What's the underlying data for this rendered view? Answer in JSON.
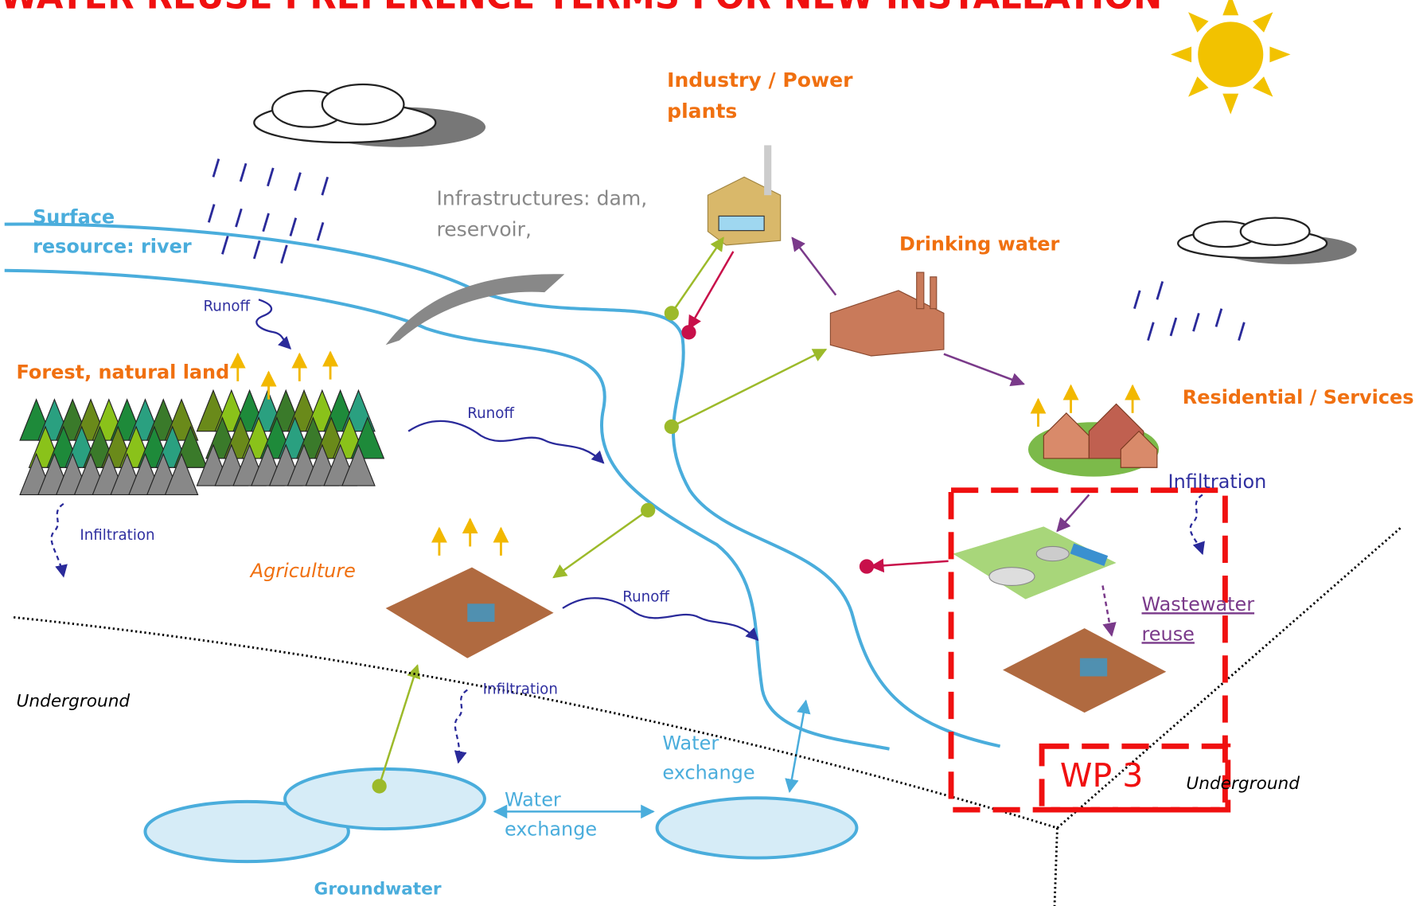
{
  "labels": [
    {
      "lines": [
        "WATER REUSE PREFERENCE TERMS FOR NEW INSTALLATION"
      ]
    },
    {
      "lines": [
        "Industry / Power",
        "plants"
      ]
    },
    {
      "lines": [
        "Infrastructures: dam,",
        "reservoir,"
      ]
    },
    {
      "lines": [
        "Surface",
        "resource: river"
      ]
    },
    {
      "lines": [
        "Drinking water"
      ]
    },
    {
      "lines": [
        "Runoff"
      ]
    },
    {
      "lines": [
        "Forest, natural land"
      ]
    },
    {
      "lines": [
        "Runoff"
      ]
    },
    {
      "lines": [
        "Residential / Services"
      ]
    },
    {
      "lines": [
        "Infiltration"
      ]
    },
    {
      "lines": [
        "Infiltration"
      ]
    },
    {
      "lines": [
        "Agriculture"
      ]
    },
    {
      "lines": [
        "Runoff"
      ]
    },
    {
      "lines": [
        "Wastewater",
        "reuse"
      ]
    },
    {
      "lines": [
        "Underground"
      ]
    },
    {
      "lines": [
        "Infiltration"
      ]
    },
    {
      "lines": [
        "Water",
        "exchange"
      ]
    },
    {
      "lines": [
        "WP 3"
      ]
    },
    {
      "lines": [
        "Underground"
      ]
    },
    {
      "lines": [
        "Water",
        "exchange"
      ]
    },
    {
      "lines": [
        "Groundwater"
      ]
    }
  ]
}
